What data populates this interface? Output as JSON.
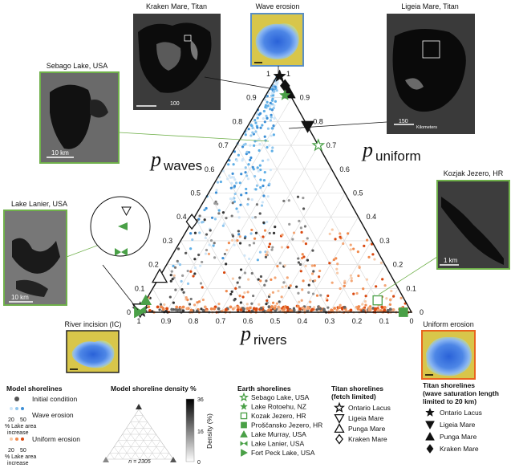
{
  "photos": {
    "kraken": "Kraken Mare, Titan",
    "wave_erosion": "Wave erosion",
    "ligeia": "Ligeia Mare, Titan",
    "sebago": "Sebago Lake, USA",
    "kozjak": "Kozjak Jezero, HR",
    "lanier": "Lake Lanier, USA",
    "river_incision": "River incision (IC)",
    "uniform_erosion": "Uniform erosion"
  },
  "scale_bars": {
    "sebago": "10 km",
    "kozjak": "1 km",
    "lanier": "10 km",
    "ligeia": "150",
    "ligeia_unit": "Kilometers",
    "kraken": "100"
  },
  "axes": {
    "waves": {
      "p": "p",
      "sub": "waves"
    },
    "uniform": {
      "p": "p",
      "sub": "uniform"
    },
    "rivers": {
      "p": "p",
      "sub": "rivers"
    }
  },
  "ticks": {
    "left": [
      "0",
      "0.1",
      "0.2",
      "0.3",
      "0.4",
      "0.5",
      "0.6",
      "0.7",
      "0.8",
      "0.9",
      "1"
    ],
    "right": [
      "0",
      "0.1",
      "0.2",
      "0.3",
      "0.4",
      "0.5",
      "0.6",
      "0.7",
      "0.8",
      "0.9",
      "1"
    ],
    "bottom": [
      "0",
      "0.1",
      "0.2",
      "0.3",
      "0.4",
      "0.5",
      "0.6",
      "0.7",
      "0.8",
      "0.9",
      "1"
    ]
  },
  "legend": {
    "model": {
      "title": "Model shorelines",
      "initial": "Initial condition",
      "wave": "Wave erosion",
      "uniform": "Uniform erosion",
      "lo": "20",
      "hi": "50",
      "pct1": "% Lake area",
      "pct2": "increase"
    },
    "density": {
      "title": "Model shoreline density %",
      "n": "n = 2305",
      "axis": "Density (%)",
      "t36": "36",
      "t16": "16",
      "t0": "0"
    },
    "earth": {
      "title": "Earth shorelines",
      "items": [
        "Sebago Lake, USA",
        "Lake Rotoehu, NZ",
        "Kozak Jezero, HR",
        "Proščansko Jezero, HR",
        "Lake Murray, USA",
        "Lake Lanier, USA",
        "Fort Peck Lake, USA"
      ]
    },
    "titan_fetch": {
      "title1": "Titan shorelines",
      "title2": "(fetch limited)",
      "items": [
        "Ontario Lacus",
        "Ligeia Mare",
        "Punga Mare",
        "Kraken Mare"
      ]
    },
    "titan_wave": {
      "title1": "Titan shorelines",
      "title2": "(wave saturation length",
      "title3": "limited to 20 km)",
      "items": [
        "Ontario Lacus",
        "Ligeia Mare",
        "Punga Mare",
        "Kraken Mare"
      ]
    }
  },
  "chart_data": {
    "type": "scatter",
    "plot": "ternary",
    "components": [
      "p_waves",
      "p_uniform",
      "p_rivers"
    ],
    "range": [
      0,
      1
    ],
    "model_shorelines": {
      "n": 2305,
      "categories": [
        "Initial condition",
        "Wave erosion",
        "Uniform erosion"
      ],
      "lake_area_increase_percent_scale": [
        20,
        50
      ],
      "colors": {
        "initial": "#555555",
        "wave": "#6bb6ea",
        "uniform": "#e8651e"
      }
    },
    "earth_shorelines": [
      {
        "name": "Sebago Lake, USA",
        "marker": "open-star",
        "p_waves": 0.7,
        "p_uniform": 0.3,
        "p_rivers": 0.0
      },
      {
        "name": "Lake Rotoehu, NZ",
        "marker": "star",
        "p_waves": 0.91,
        "p_uniform": 0.07,
        "p_rivers": 0.02
      },
      {
        "name": "Kozak Jezero, HR",
        "marker": "open-square",
        "p_waves": 0.05,
        "p_uniform": 0.85,
        "p_rivers": 0.1
      },
      {
        "name": "Proščansko Jezero, HR",
        "marker": "square",
        "p_waves": 0.0,
        "p_uniform": 0.97,
        "p_rivers": 0.03
      },
      {
        "name": "Lake Murray, USA",
        "marker": "triangle-up",
        "p_waves": 0.05,
        "p_uniform": 0.0,
        "p_rivers": 0.95
      },
      {
        "name": "Lake Lanier, USA",
        "marker": "bowtie",
        "p_waves": 0.01,
        "p_uniform": 0.0,
        "p_rivers": 0.99
      },
      {
        "name": "Fort Peck Lake, USA",
        "marker": "triangle-right",
        "p_waves": 0.0,
        "p_uniform": 0.0,
        "p_rivers": 1.0
      }
    ],
    "titan_fetch_limited": [
      {
        "name": "Ontario Lacus",
        "marker": "open-star",
        "p_waves": 0.01,
        "p_uniform": 0.0,
        "p_rivers": 0.99
      },
      {
        "name": "Ligeia Mare",
        "marker": "open-triangle-down",
        "p_waves": 0.01,
        "p_uniform": 0.0,
        "p_rivers": 0.99
      },
      {
        "name": "Punga Mare",
        "marker": "open-triangle-up",
        "p_waves": 0.15,
        "p_uniform": 0.0,
        "p_rivers": 0.85
      },
      {
        "name": "Kraken Mare",
        "marker": "open-diamond",
        "p_waves": 0.38,
        "p_uniform": 0.0,
        "p_rivers": 0.62
      }
    ],
    "titan_wave_saturation": [
      {
        "name": "Ontario Lacus",
        "marker": "star",
        "p_waves": 0.99,
        "p_uniform": 0.01,
        "p_rivers": 0.0
      },
      {
        "name": "Ligeia Mare",
        "marker": "triangle-down",
        "p_waves": 0.78,
        "p_uniform": 0.22,
        "p_rivers": 0.0
      },
      {
        "name": "Punga Mare",
        "marker": "triangle-up",
        "p_waves": 0.92,
        "p_uniform": 0.08,
        "p_rivers": 0.0
      },
      {
        "name": "Kraken Mare",
        "marker": "diamond",
        "p_waves": 0.95,
        "p_uniform": 0.05,
        "p_rivers": 0.0
      }
    ]
  }
}
